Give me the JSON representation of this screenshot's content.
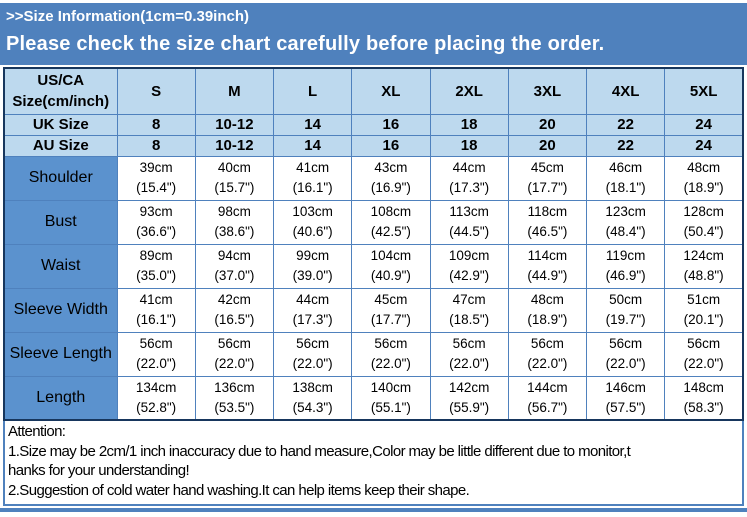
{
  "colors": {
    "banner_bg": "#4f81bd",
    "banner_text": "#ffffff",
    "header_cell_bg": "#bdd9ee",
    "label_cell_bg": "#5b92ce",
    "grid_border": "#4f81bd",
    "outer_border": "#17365d",
    "cell_text": "#000000"
  },
  "banner": {
    "line1": ">>Size Information(1cm=0.39inch)",
    "line2": "Please check the size chart carefully before placing the order."
  },
  "chart_data": {
    "type": "table",
    "title": ">>Size Information(1cm=0.39inch)",
    "subtitle": "Please check the size chart carefully before placing the order.",
    "columns": [
      "US/CA\nSize(cm/inch)",
      "S",
      "M",
      "L",
      "XL",
      "2XL",
      "3XL",
      "4XL",
      "5XL"
    ],
    "rows": [
      [
        "UK Size",
        "8",
        "10-12",
        "14",
        "16",
        "18",
        "20",
        "22",
        "24"
      ],
      [
        "AU Size",
        "8",
        "10-12",
        "14",
        "16",
        "18",
        "20",
        "22",
        "24"
      ],
      [
        "Shoulder",
        "39cm\n(15.4\")",
        "40cm\n(15.7\")",
        "41cm\n(16.1\")",
        "43cm\n(16.9\")",
        "44cm\n(17.3\")",
        "45cm\n(17.7\")",
        "46cm\n(18.1\")",
        "48cm\n(18.9\")"
      ],
      [
        "Bust",
        "93cm\n(36.6\")",
        "98cm\n(38.6\")",
        "103cm\n(40.6\")",
        "108cm\n(42.5\")",
        "113cm\n(44.5\")",
        "118cm\n(46.5\")",
        "123cm\n(48.4\")",
        "128cm\n(50.4\")"
      ],
      [
        "Waist",
        "89cm\n(35.0\")",
        "94cm\n(37.0\")",
        "99cm\n(39.0\")",
        "104cm\n(40.9\")",
        "109cm\n(42.9\")",
        "114cm\n(44.9\")",
        "119cm\n(46.9\")",
        "124cm\n(48.8\")"
      ],
      [
        "Sleeve Width",
        "41cm\n(16.1\")",
        "42cm\n(16.5\")",
        "44cm\n(17.3\")",
        "45cm\n(17.7\")",
        "47cm\n(18.5\")",
        "48cm\n(18.9\")",
        "50cm\n(19.7\")",
        "51cm\n(20.1\")"
      ],
      [
        "Sleeve Length",
        "56cm\n(22.0\")",
        "56cm\n(22.0\")",
        "56cm\n(22.0\")",
        "56cm\n(22.0\")",
        "56cm\n(22.0\")",
        "56cm\n(22.0\")",
        "56cm\n(22.0\")",
        "56cm\n(22.0\")"
      ],
      [
        "Length",
        "134cm\n(52.8\")",
        "136cm\n(53.5\")",
        "138cm\n(54.3\")",
        "140cm\n(55.1\")",
        "142cm\n(55.9\")",
        "144cm\n(56.7\")",
        "146cm\n(57.5\")",
        "148cm\n(58.3\")"
      ]
    ],
    "notes": [
      "Attention:",
      "1.Size may be 2cm/1 inch inaccuracy due to hand measure,Color may be little different due to monitor,t",
      "hanks for your understanding!",
      "2.Suggestion of cold water hand washing.It can help items keep their shape."
    ]
  }
}
